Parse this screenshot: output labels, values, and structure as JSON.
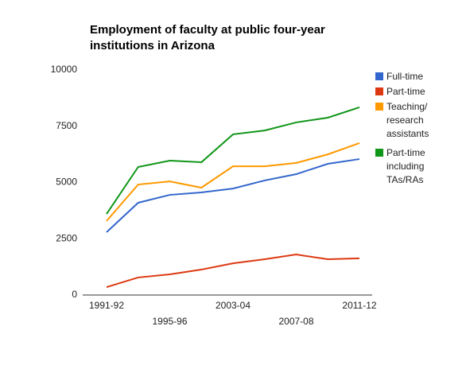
{
  "chart_data": {
    "type": "line",
    "title": "Employment of faculty at public four-year institutions in Arizona",
    "categories": [
      "1991-92",
      null,
      "1995-96",
      null,
      "2003-04",
      null,
      "2007-08",
      null,
      "2011-12"
    ],
    "series": [
      {
        "name": "Full-time",
        "color": "#3366cc",
        "values": [
          2790,
          4100,
          4450,
          4560,
          4730,
          5090,
          5370,
          5830,
          6040
        ]
      },
      {
        "name": "Part-time",
        "color": "#dc3912",
        "values": [
          350,
          780,
          920,
          1130,
          1410,
          1590,
          1800,
          1590,
          1630
        ]
      },
      {
        "name": "Teaching/ research assistants",
        "color": "#ff9900",
        "values": [
          3290,
          4910,
          5050,
          4770,
          5720,
          5720,
          5870,
          6250,
          6750
        ]
      },
      {
        "name": "Part-time including TAs/RAs",
        "color": "#109618",
        "values": [
          3600,
          5690,
          5970,
          5900,
          7140,
          7310,
          7670,
          7880,
          8340
        ]
      }
    ],
    "ylim": [
      0,
      10000
    ],
    "yticks": [
      0,
      2500,
      5000,
      7500,
      10000
    ],
    "legend": "right"
  }
}
